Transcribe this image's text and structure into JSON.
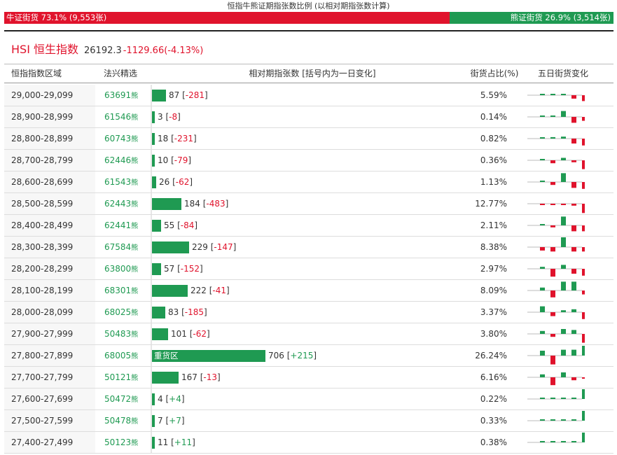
{
  "ratio_title": "恒指牛熊证期指张数比例 (以相对期指张数计算)",
  "bull_label": "牛证街货 73.1% (9,553张)",
  "bear_label": "熊证街货 26.9% (3,514张)",
  "bull_fraction": 0.731,
  "index": {
    "name": "HSI 恒生指数",
    "price": "26192.3",
    "change": "-1129.66(-4.13%)"
  },
  "headers": {
    "range": "恒指指数区域",
    "fa": "法兴精选",
    "rel": "相对期指张数 [括号内为一日变化]",
    "pct": "街货占比(%)",
    "five": "五日街货变化"
  },
  "bear_suffix": "熊",
  "heavy_label": "重货区",
  "colors": {
    "bull_red": "#e0132c",
    "bear_green": "#1f9a52"
  },
  "rows": [
    {
      "range": "29,000-29,099",
      "code": "63691",
      "value": 87,
      "value_text": "87",
      "change": "-281",
      "pct": "5.59%",
      "five": [
        0.05,
        0.05,
        0.05,
        -0.35,
        -0.6
      ]
    },
    {
      "range": "28,900-28,999",
      "code": "61546",
      "value": 3,
      "value_text": "3",
      "change": "-8",
      "pct": "0.14%",
      "five": [
        0,
        0,
        0.6,
        -0.6,
        -0.4
      ]
    },
    {
      "range": "28,800-28,899",
      "code": "60743",
      "value": 18,
      "value_text": "18",
      "change": "-231",
      "pct": "0.82%",
      "five": [
        0,
        0.15,
        0.2,
        -0.5,
        -0.7
      ]
    },
    {
      "range": "28,700-28,799",
      "code": "62446",
      "value": 10,
      "value_text": "10",
      "change": "-79",
      "pct": "0.36%",
      "five": [
        0,
        -0.3,
        0.25,
        -0.2,
        -0.9
      ]
    },
    {
      "range": "28,600-28,699",
      "code": "61543",
      "value": 26,
      "value_text": "26",
      "change": "-62",
      "pct": "1.13%",
      "five": [
        0,
        -0.3,
        0.9,
        -0.6,
        -0.7
      ]
    },
    {
      "range": "28,500-28,599",
      "code": "62443",
      "value": 184,
      "value_text": "184",
      "change": "-483",
      "pct": "12.77%",
      "five": [
        -0.1,
        -0.1,
        -0.05,
        -0.2,
        -0.95
      ]
    },
    {
      "range": "28,400-28,499",
      "code": "62441",
      "value": 55,
      "value_text": "55",
      "change": "-84",
      "pct": "2.11%",
      "five": [
        0,
        -0.2,
        0.9,
        -0.6,
        -0.6
      ]
    },
    {
      "range": "28,300-28,399",
      "code": "67584",
      "value": 229,
      "value_text": "229",
      "change": "-147",
      "pct": "8.38%",
      "five": [
        -0.35,
        -0.45,
        1.0,
        -0.45,
        -0.45
      ]
    },
    {
      "range": "28,200-28,299",
      "code": "63800",
      "value": 57,
      "value_text": "57",
      "change": "-152",
      "pct": "2.97%",
      "five": [
        0.2,
        -0.8,
        0.4,
        -0.5,
        -0.7
      ]
    },
    {
      "range": "28,100-28,199",
      "code": "68301",
      "value": 222,
      "value_text": "222",
      "change": "-41",
      "pct": "8.09%",
      "five": [
        0.3,
        -0.7,
        0.9,
        0.9,
        -0.4
      ]
    },
    {
      "range": "28,000-28,099",
      "code": "68025",
      "value": 83,
      "value_text": "83",
      "change": "-185",
      "pct": "3.37%",
      "five": [
        0.6,
        -0.4,
        0.2,
        0.3,
        -0.7
      ]
    },
    {
      "range": "27,900-27,999",
      "code": "50483",
      "value": 101,
      "value_text": "101",
      "change": "-62",
      "pct": "3.80%",
      "five": [
        0.3,
        -0.3,
        0.5,
        0.4,
        -0.9
      ]
    },
    {
      "range": "27,800-27,899",
      "code": "68005",
      "value": 706,
      "value_text": "706",
      "change": "+215",
      "pct": "26.24%",
      "five": [
        0.5,
        -0.9,
        0.6,
        0.6,
        1.0
      ]
    },
    {
      "range": "27,700-27,799",
      "code": "50121",
      "value": 167,
      "value_text": "167",
      "change": "-13",
      "pct": "6.16%",
      "five": [
        0.3,
        -0.8,
        0.5,
        -0.3,
        -0.1
      ]
    },
    {
      "range": "27,600-27,699",
      "code": "50472",
      "value": 4,
      "value_text": "4",
      "change": "+4",
      "pct": "0.22%",
      "five": [
        0,
        0,
        0,
        0,
        1.0
      ]
    },
    {
      "range": "27,500-27,599",
      "code": "50478",
      "value": 7,
      "value_text": "7",
      "change": "+7",
      "pct": "0.33%",
      "five": [
        0,
        0,
        0,
        0,
        1.0
      ]
    },
    {
      "range": "27,400-27,499",
      "code": "50123",
      "value": 11,
      "value_text": "11",
      "change": "+11",
      "pct": "0.38%",
      "five": [
        0,
        0,
        0,
        0,
        1.0
      ]
    }
  ]
}
